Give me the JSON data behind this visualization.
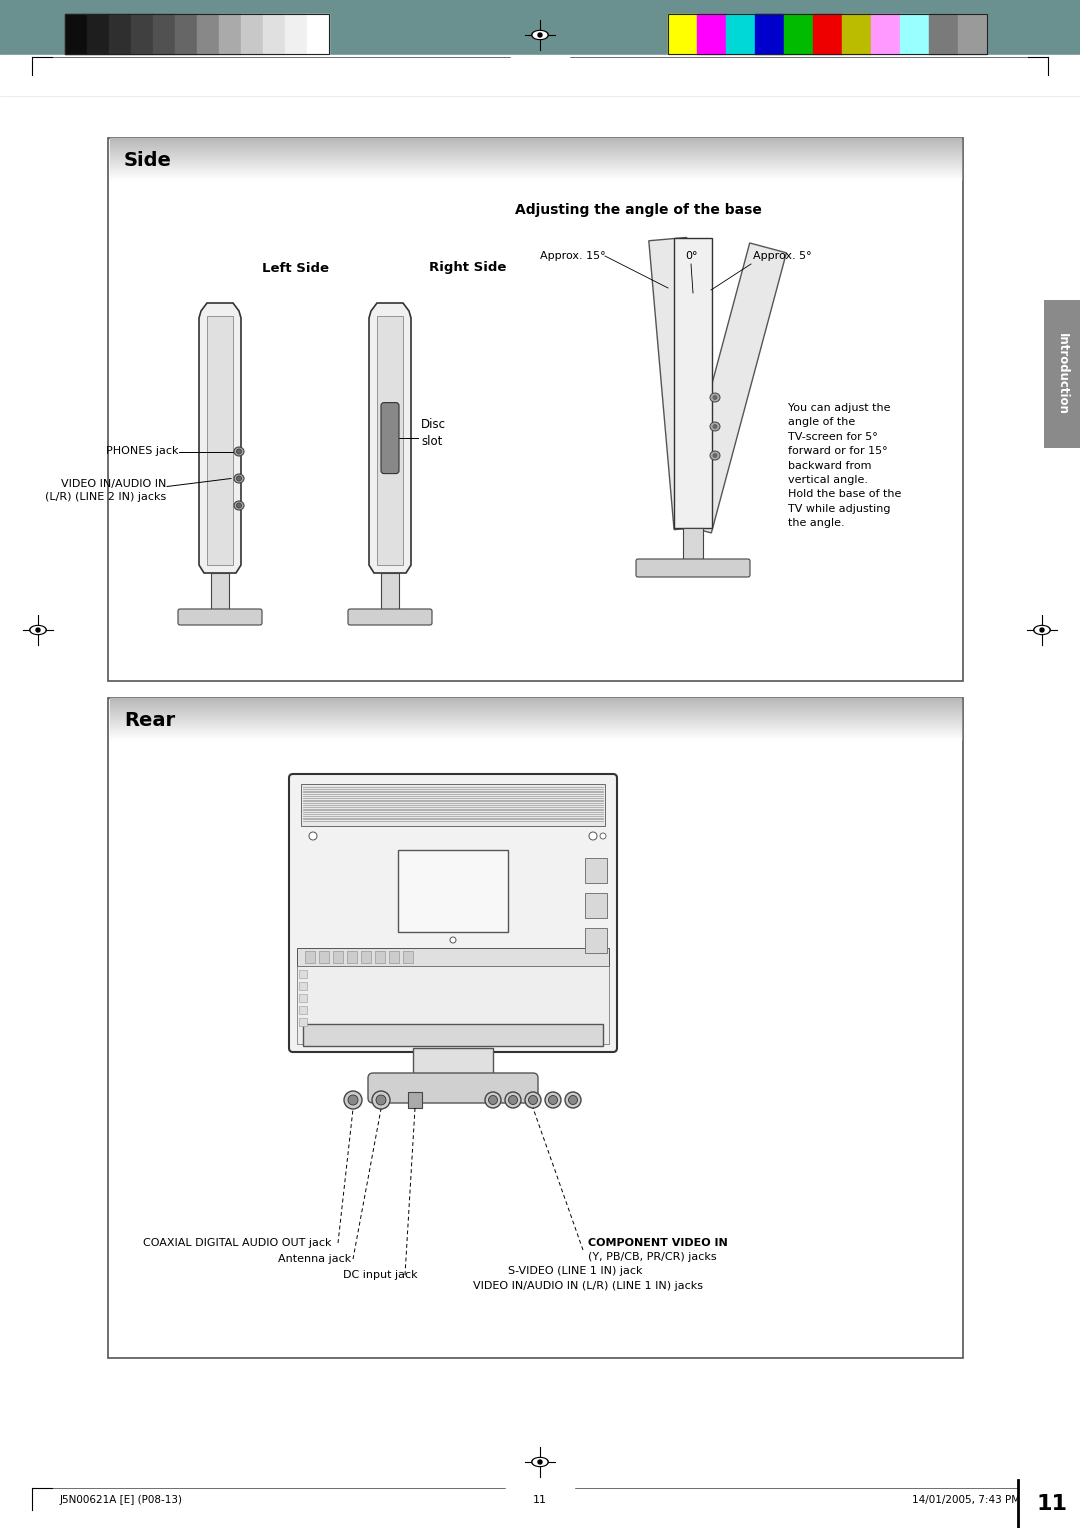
{
  "page_bg": "#ffffff",
  "header_teal_color": "#6b9090",
  "color_bars_left": [
    "#0d0d0d",
    "#1e1e1e",
    "#2f2f2f",
    "#404040",
    "#515151",
    "#666666",
    "#888888",
    "#aaaaaa",
    "#c8c8c8",
    "#e0e0e0",
    "#f0f0f0",
    "#ffffff"
  ],
  "color_bars_right": [
    "#ffff00",
    "#ff00ff",
    "#00d8d8",
    "#0000cc",
    "#00bb00",
    "#ee0000",
    "#bbbb00",
    "#ff99ff",
    "#99ffff",
    "#7a7a7a",
    "#9a9a9a"
  ],
  "side_title": "Side",
  "rear_title": "Rear",
  "adjusting_title": "Adjusting the angle of the base",
  "left_side_label": "Left Side",
  "right_side_label": "Right Side",
  "phones_label": "PHONES jack",
  "video_in_label1": "VIDEO IN/AUDIO IN",
  "video_in_label2": "(L/R) (LINE 2 IN) jacks",
  "disc_slot_label": "Disc\nslot",
  "approx15_label": "Approx. 15°",
  "approx0_label": "0°",
  "approx5_label": "Approx. 5°",
  "angle_desc": "You can adjust the\nangle of the\nTV-screen for 5°\nforward or for 15°\nbackward from\nvertical angle.\nHold the base of the\nTV while adjusting\nthe angle.",
  "coaxial_label": "COAXIAL DIGITAL AUDIO OUT jack",
  "antenna_label": "Antenna jack",
  "dc_label": "DC input jack",
  "component_label": "COMPONENT VIDEO IN",
  "component_sub": "(Y, PB/CB, PR/CR) jacks",
  "svideo_label": "S-VIDEO (LINE 1 IN) jack",
  "video_rear_label": "VIDEO IN/AUDIO IN (L/R) (LINE 1 IN) jacks",
  "intro_tab": "Introduction",
  "footer_left": "J5N00621A [E] (P08-13)",
  "footer_mid": "11",
  "footer_right": "14/01/2005, 7:43 PM",
  "page_num": "11"
}
